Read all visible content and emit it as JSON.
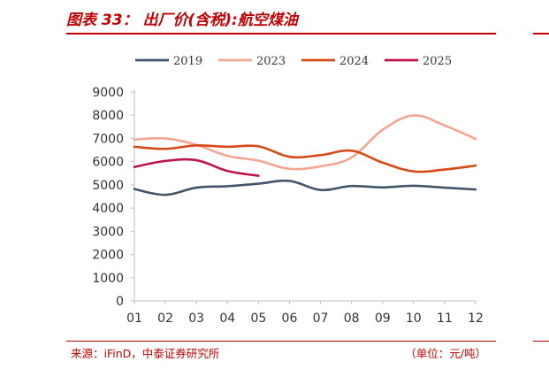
{
  "header": {
    "title": "图表 33： 出厂价(含税):航空煤油"
  },
  "footer": {
    "source": "来源：iFinD，中泰证券研究所",
    "unit": "（单位：元/吨）"
  },
  "chart_data": {
    "type": "line",
    "title": "",
    "xlabel": "",
    "ylabel": "",
    "categories": [
      "01",
      "02",
      "03",
      "04",
      "05",
      "06",
      "07",
      "08",
      "09",
      "10",
      "11",
      "12"
    ],
    "ylim": [
      0,
      9000
    ],
    "yticks": [
      "0",
      "1000",
      "2000",
      "3000",
      "4000",
      "5000",
      "6000",
      "7000",
      "8000",
      "9000"
    ],
    "grid": false,
    "legend": "top",
    "series": [
      {
        "name": "2019",
        "color": "#44546a",
        "x": [
          1,
          2,
          3,
          4,
          5,
          6,
          7,
          8,
          9,
          10,
          11,
          12
        ],
        "values": [
          4820,
          4570,
          4880,
          4940,
          5050,
          5170,
          4780,
          4950,
          4890,
          4960,
          4880,
          4800
        ]
      },
      {
        "name": "2023",
        "color": "#f4a692",
        "x": [
          1,
          2,
          3,
          4,
          5,
          6,
          7,
          8,
          9,
          10,
          11,
          12
        ],
        "values": [
          6950,
          7000,
          6720,
          6250,
          6040,
          5690,
          5800,
          6180,
          7370,
          7990,
          7560,
          6980
        ]
      },
      {
        "name": "2024",
        "color": "#d64a17",
        "x": [
          1,
          2,
          3,
          4,
          5,
          6,
          7,
          8,
          9,
          10,
          11,
          12
        ],
        "values": [
          6640,
          6550,
          6700,
          6640,
          6660,
          6210,
          6280,
          6470,
          5960,
          5580,
          5660,
          5830
        ]
      },
      {
        "name": "2025",
        "color": "#c0134a",
        "x": [
          1,
          2,
          3,
          4,
          5
        ],
        "values": [
          5770,
          6030,
          6060,
          5600,
          5390
        ]
      }
    ]
  }
}
